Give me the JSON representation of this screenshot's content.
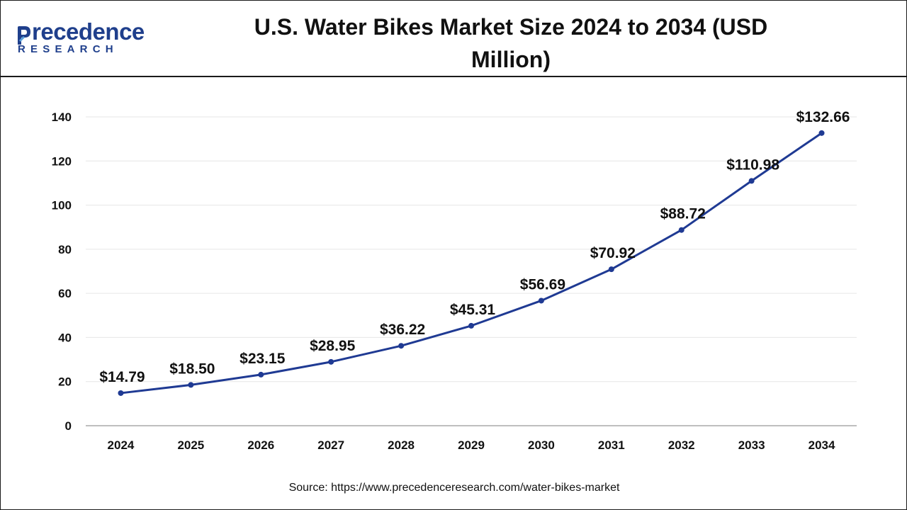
{
  "header": {
    "logo_top": "recedence",
    "logo_bottom": "RESEARCH",
    "title": "U.S. Water Bikes Market Size 2024 to 2034 (USD Million)"
  },
  "source": "Source: https://www.precedenceresearch.com/water-bikes-market",
  "colors": {
    "line": "#1f3a93",
    "brand": "#1f3f8c",
    "grid": "#e6e6e6",
    "axis": "#999999"
  },
  "chart_data": {
    "type": "line",
    "title": "U.S. Water Bikes Market Size 2024 to 2034 (USD Million)",
    "xlabel": "",
    "ylabel": "",
    "ylim": [
      0,
      140
    ],
    "yticks": [
      0,
      20,
      40,
      60,
      80,
      100,
      120,
      140
    ],
    "categories": [
      "2024",
      "2025",
      "2026",
      "2027",
      "2028",
      "2029",
      "2030",
      "2031",
      "2032",
      "2033",
      "2034"
    ],
    "series": [
      {
        "name": "U.S. Water Bikes Market Size",
        "values": [
          14.79,
          18.5,
          23.15,
          28.95,
          36.22,
          45.31,
          56.69,
          70.92,
          88.72,
          110.98,
          132.66
        ],
        "labels": [
          "$14.79",
          "$18.50",
          "$23.15",
          "$28.95",
          "$36.22",
          "$45.31",
          "$56.69",
          "$70.92",
          "$88.72",
          "$110.98",
          "$132.66"
        ]
      }
    ],
    "grid": true,
    "legend": "none"
  }
}
